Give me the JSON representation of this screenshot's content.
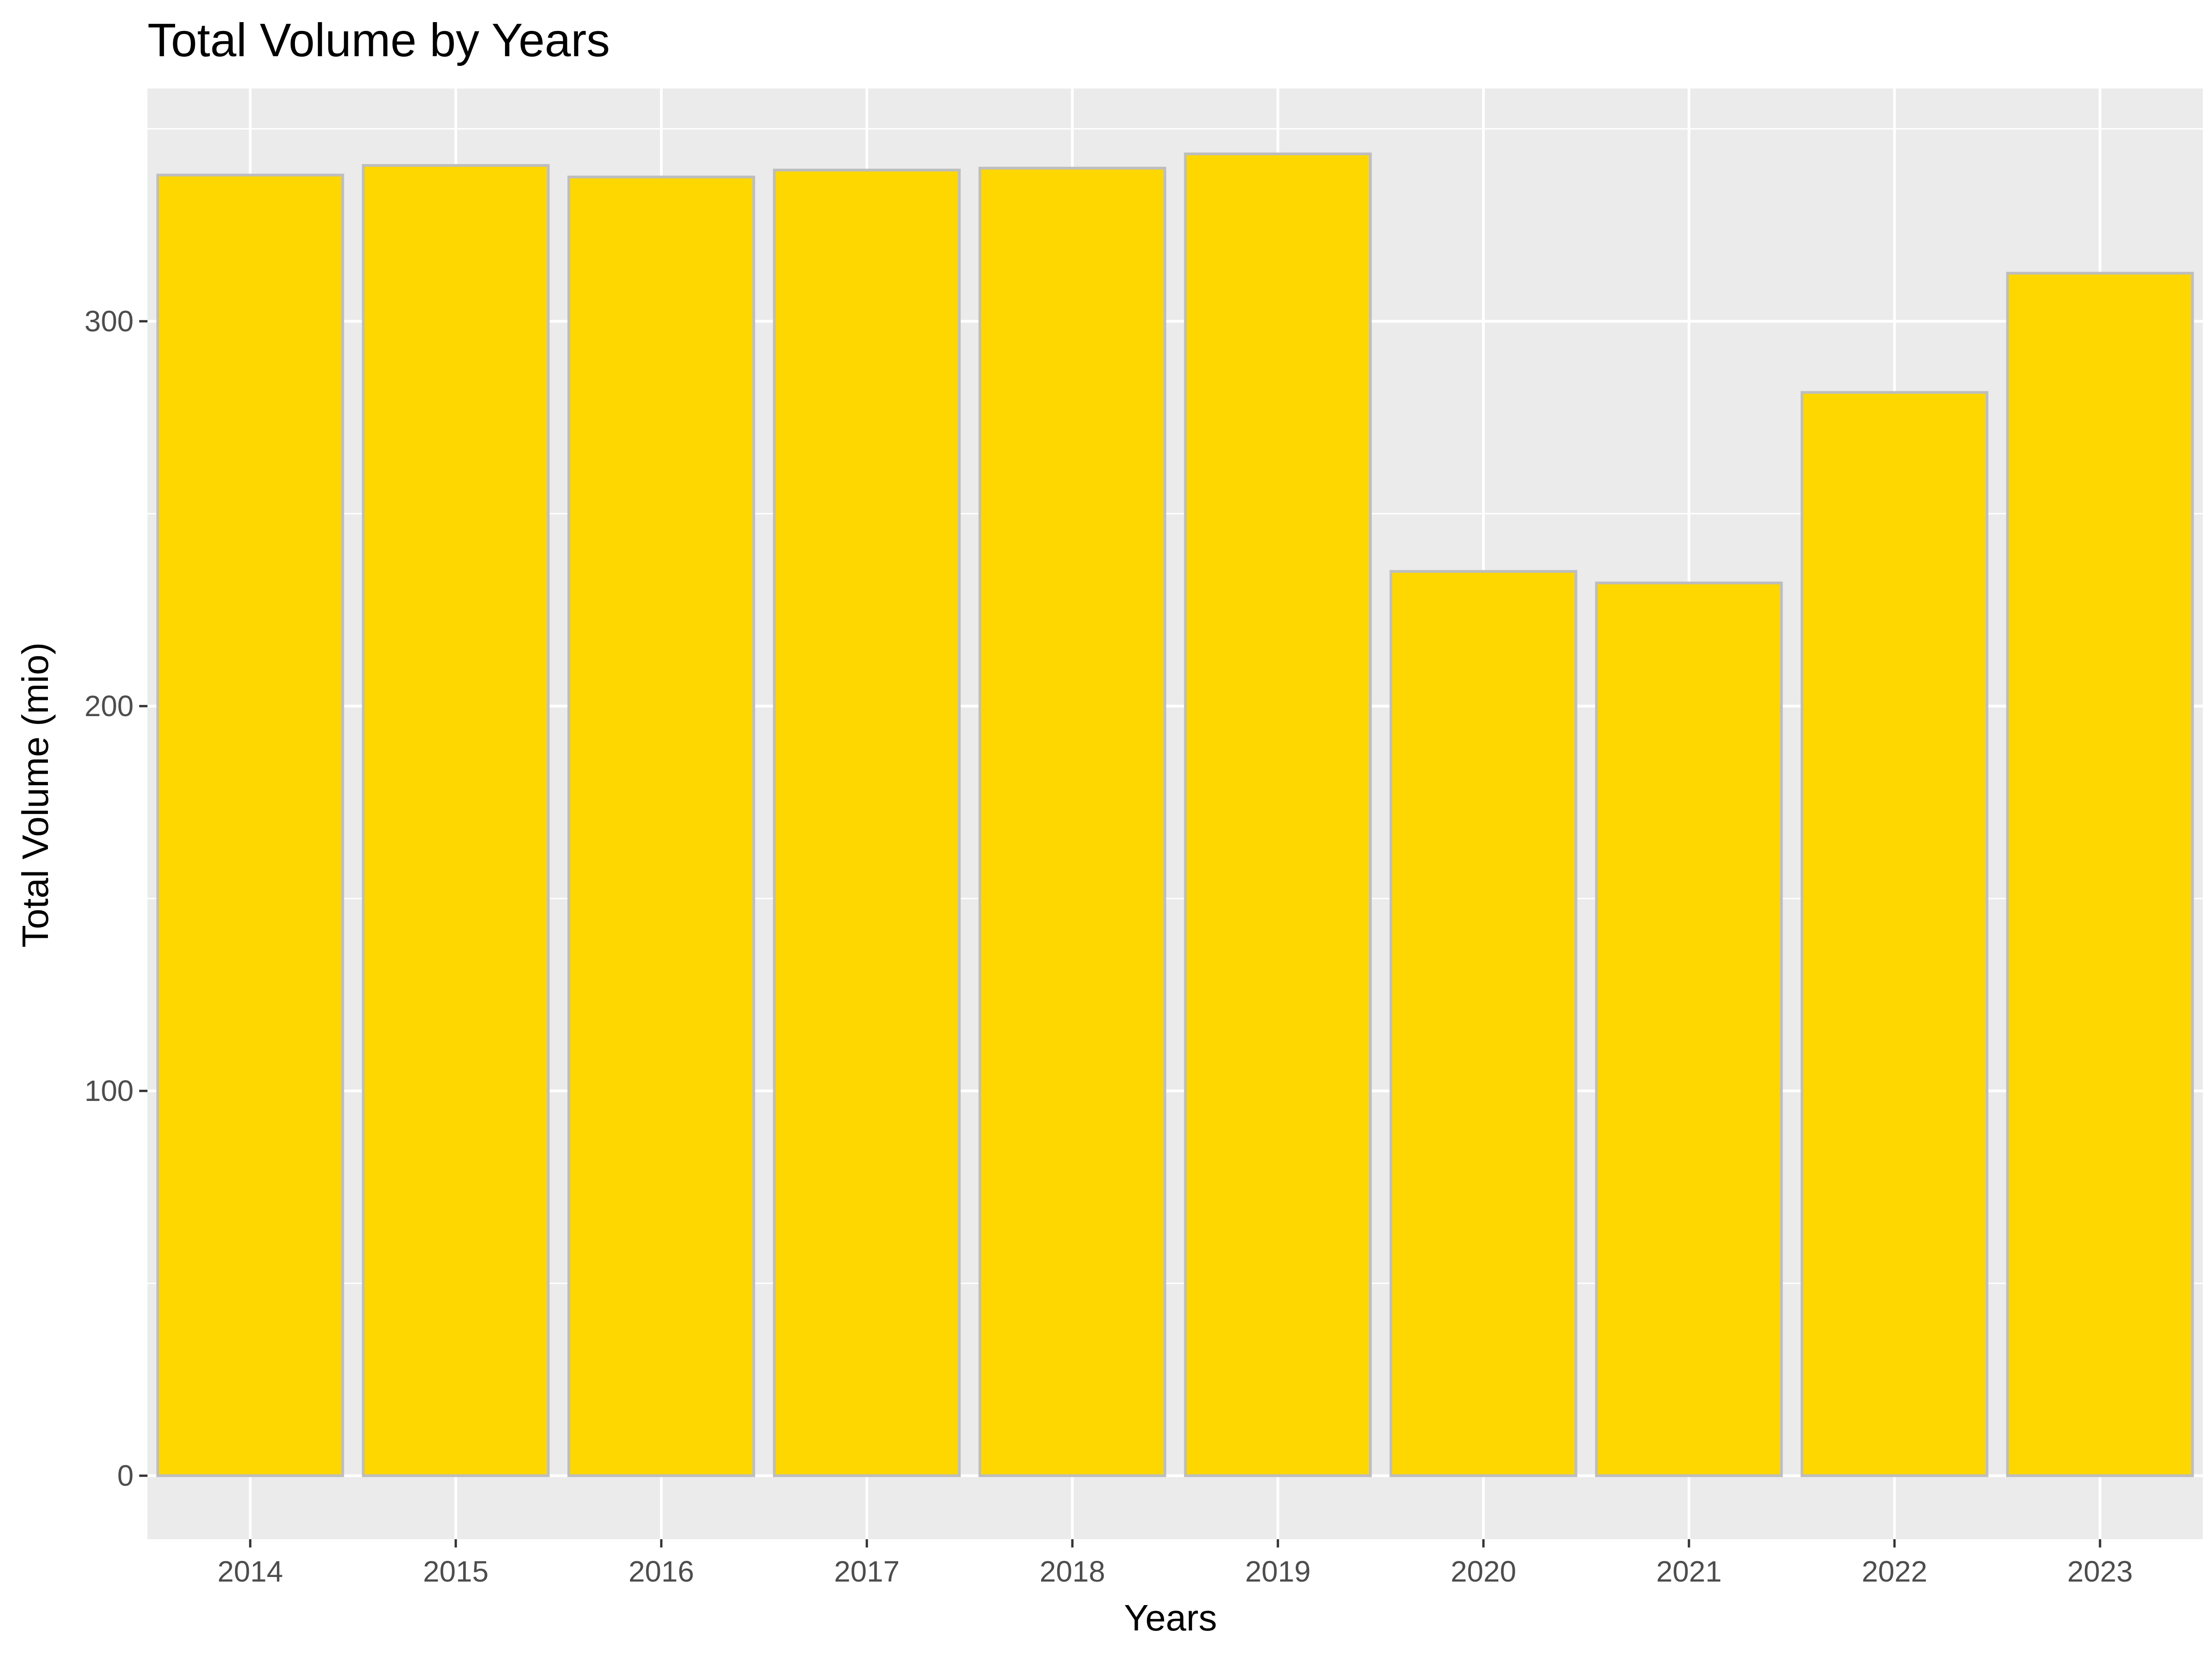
{
  "chart_data": {
    "type": "bar",
    "title": "Total Volume by Years",
    "xlabel": "Years",
    "ylabel": "Total Volume (mio)",
    "categories": [
      "2014",
      "2015",
      "2016",
      "2017",
      "2018",
      "2019",
      "2020",
      "2021",
      "2022",
      "2023"
    ],
    "values": [
      338,
      340.5,
      337.5,
      339.3,
      339.8,
      343.5,
      235,
      232,
      281.5,
      312.5
    ],
    "ylim": [
      -16.5,
      360.5
    ],
    "yticks": [
      0,
      100,
      200,
      300
    ],
    "grid": true,
    "legend": "none",
    "colors": {
      "bar_fill": "#FFD700",
      "bar_outline": "#BEBEBE",
      "panel_background": "#EBEBEB",
      "grid": "#FFFFFF",
      "tick_text": "#4D4D4D",
      "tick_mark": "#333333"
    }
  }
}
